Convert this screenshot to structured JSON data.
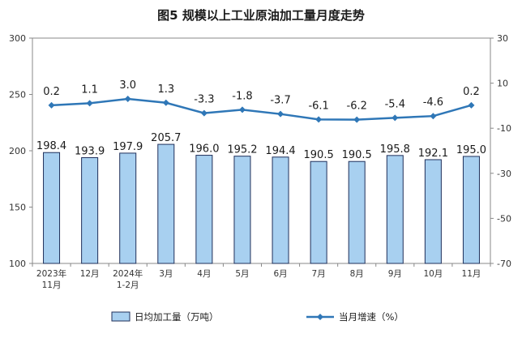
{
  "title": "图5  规模以上工业原油加工量月度走势",
  "colors": {
    "bar_fill": "#a8d0f0",
    "bar_stroke": "#1f2f5a",
    "line": "#2f77b7",
    "axis": "#888888"
  },
  "chart_data": {
    "type": "bar",
    "categories": [
      "2023年\n11月",
      "12月",
      "2024年\n1-2月",
      "3月",
      "4月",
      "5月",
      "6月",
      "7月",
      "8月",
      "9月",
      "10月",
      "11月"
    ],
    "series": [
      {
        "name": "日均加工量（万吨）",
        "type": "bar",
        "axis": "left",
        "values": [
          198.4,
          193.9,
          197.9,
          205.7,
          196.0,
          195.2,
          194.4,
          190.5,
          190.5,
          195.8,
          192.1,
          195.0
        ]
      },
      {
        "name": "当月增速（%）",
        "type": "line",
        "axis": "right",
        "values": [
          0.2,
          1.1,
          3.0,
          1.3,
          -3.3,
          -1.8,
          -3.7,
          -6.1,
          -6.2,
          -5.4,
          -4.6,
          0.2
        ]
      }
    ],
    "y_left": {
      "min": 100,
      "max": 300,
      "ticks": [
        100,
        150,
        200,
        250,
        300
      ]
    },
    "y_right": {
      "min": -70,
      "max": 30,
      "ticks": [
        -70,
        -50,
        -30,
        -10,
        10,
        30
      ]
    },
    "legend_position": "bottom",
    "grid": false
  }
}
